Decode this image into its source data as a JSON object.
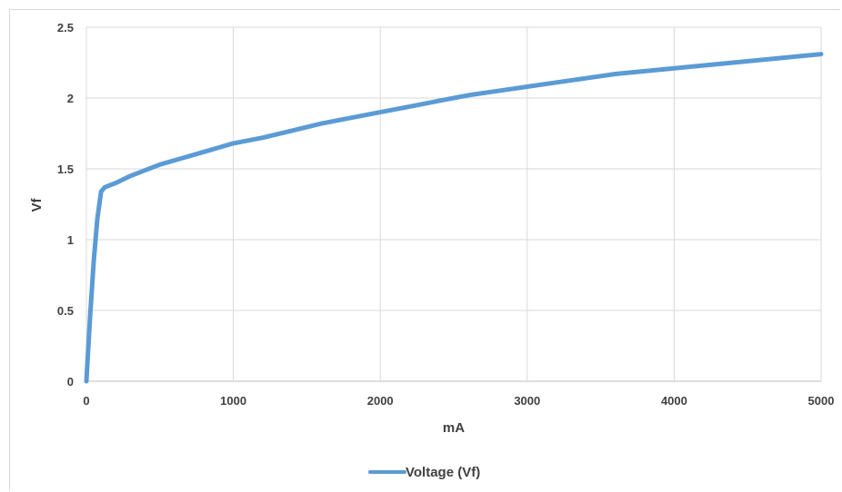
{
  "chart_data": {
    "type": "line",
    "xlabel": "mA",
    "ylabel": "Vf",
    "xlim": [
      0,
      5000
    ],
    "ylim": [
      0,
      2.5
    ],
    "xticks": [
      "0",
      "1000",
      "2000",
      "3000",
      "4000",
      "5000"
    ],
    "yticks": [
      "0",
      "0.5",
      "1",
      "1.5",
      "2",
      "2.5"
    ],
    "grid": true,
    "legend_position": "bottom",
    "series": [
      {
        "name": "Voltage (Vf)",
        "color": "#5b9bd5",
        "x": [
          0,
          25,
          50,
          75,
          100,
          125,
          150,
          200,
          300,
          400,
          500,
          600,
          700,
          800,
          900,
          1000,
          1200,
          1400,
          1600,
          1800,
          2000,
          2200,
          2400,
          2600,
          2800,
          3000,
          3200,
          3400,
          3600,
          3800,
          4000,
          4200,
          4400,
          4600,
          4800,
          5000
        ],
        "y": [
          0,
          0.45,
          0.85,
          1.15,
          1.34,
          1.37,
          1.38,
          1.4,
          1.45,
          1.49,
          1.53,
          1.56,
          1.59,
          1.62,
          1.65,
          1.68,
          1.72,
          1.77,
          1.82,
          1.86,
          1.9,
          1.94,
          1.98,
          2.02,
          2.05,
          2.08,
          2.11,
          2.14,
          2.17,
          2.19,
          2.21,
          2.23,
          2.25,
          2.27,
          2.29,
          2.31
        ]
      }
    ]
  }
}
